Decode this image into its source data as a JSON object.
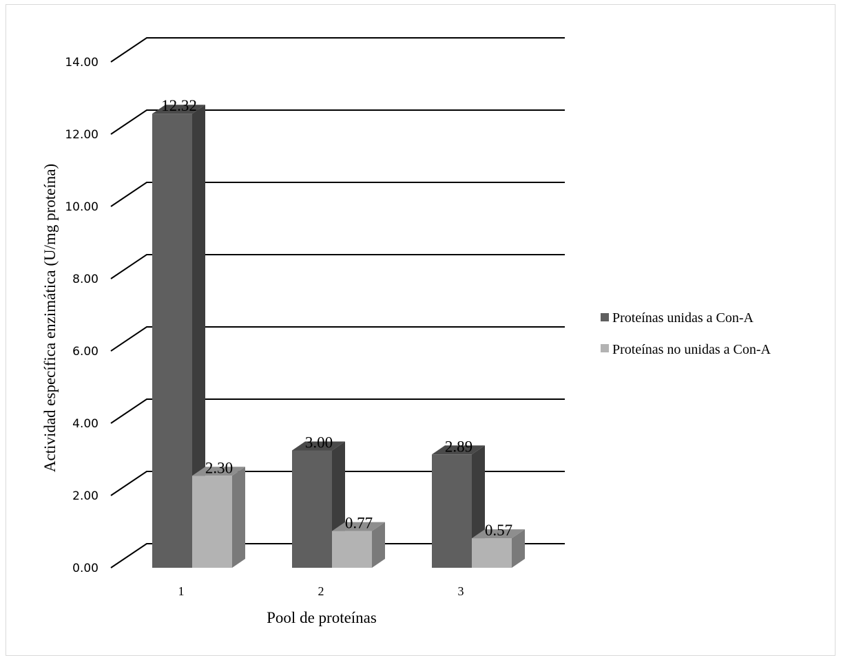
{
  "chart_data": {
    "type": "bar",
    "style": "3d clustered column",
    "categories": [
      "1",
      "2",
      "3"
    ],
    "series": [
      {
        "name": "Proteínas unidas a Con-A",
        "values": [
          12.32,
          3.0,
          2.89
        ],
        "labels": [
          "12.32",
          "3.00",
          "2.89"
        ]
      },
      {
        "name": "Proteínas no unidas a Con-A",
        "values": [
          2.3,
          0.77,
          0.57
        ],
        "labels": [
          "2.30",
          "0.77",
          "0.57"
        ]
      }
    ],
    "xlabel": "Pool de proteínas",
    "ylabel": "Actividad específica enzimática (U/mg proteína)",
    "ylim": [
      0,
      14
    ],
    "yticks": [
      "0.00",
      "2.00",
      "4.00",
      "6.00",
      "8.00",
      "10.00",
      "12.00",
      "14.00"
    ],
    "grid": true,
    "legend_position": "right"
  },
  "colors": {
    "series1_front": "#5f5f5f",
    "series1_side": "#3d3d3d",
    "series1_top": "#4a4a4a",
    "series2_front": "#b3b3b3",
    "series2_side": "#7a7a7a",
    "series2_top": "#8e8e8e",
    "grid": "#000000"
  }
}
